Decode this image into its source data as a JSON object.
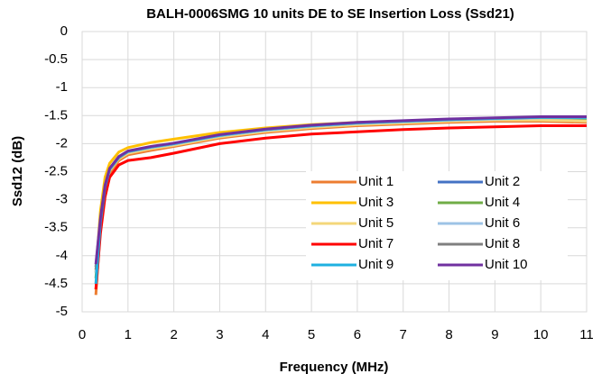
{
  "chart_data": {
    "type": "line",
    "title": "BALH-0006SMG 10 units DE to SE Insertion Loss (Ssd21)",
    "x_label": "Frequency  (MHz)",
    "y_label": "Ssd12 (dB)",
    "x": [
      0.3,
      0.4,
      0.5,
      0.6,
      0.8,
      1,
      1.5,
      2,
      3,
      4,
      5,
      6,
      7,
      8,
      9,
      10,
      11
    ],
    "series": [
      {
        "name": "Unit 1",
        "color": "#ED7D31",
        "values": [
          -4.7,
          -3.5,
          -2.85,
          -2.52,
          -2.3,
          -2.2,
          -2.12,
          -2.05,
          -1.9,
          -1.8,
          -1.73,
          -1.68,
          -1.65,
          -1.62,
          -1.6,
          -1.6,
          -1.62
        ]
      },
      {
        "name": "Unit 2",
        "color": "#4472C4",
        "values": [
          -4.2,
          -3.35,
          -2.75,
          -2.45,
          -2.25,
          -2.15,
          -2.07,
          -2.0,
          -1.85,
          -1.75,
          -1.68,
          -1.63,
          -1.6,
          -1.57,
          -1.55,
          -1.53,
          -1.53
        ]
      },
      {
        "name": "Unit 3",
        "color": "#FFC000",
        "values": [
          -4.3,
          -3.2,
          -2.6,
          -2.35,
          -2.15,
          -2.07,
          -1.98,
          -1.92,
          -1.8,
          -1.72,
          -1.66,
          -1.62,
          -1.6,
          -1.58,
          -1.56,
          -1.55,
          -1.55
        ]
      },
      {
        "name": "Unit 4",
        "color": "#70AD47",
        "values": [
          -4.4,
          -3.4,
          -2.78,
          -2.47,
          -2.26,
          -2.16,
          -2.08,
          -2.02,
          -1.87,
          -1.77,
          -1.7,
          -1.65,
          -1.62,
          -1.59,
          -1.57,
          -1.56,
          -1.56
        ]
      },
      {
        "name": "Unit 5",
        "color": "#F4D77A",
        "values": [
          -4.6,
          -3.45,
          -2.8,
          -2.48,
          -2.27,
          -2.17,
          -2.09,
          -2.03,
          -1.88,
          -1.78,
          -1.71,
          -1.66,
          -1.63,
          -1.6,
          -1.58,
          -1.58,
          -1.6
        ]
      },
      {
        "name": "Unit 6",
        "color": "#9DC3E6",
        "values": [
          -4.3,
          -3.38,
          -2.76,
          -2.46,
          -2.25,
          -2.15,
          -2.07,
          -2.01,
          -1.86,
          -1.76,
          -1.69,
          -1.64,
          -1.61,
          -1.58,
          -1.56,
          -1.54,
          -1.54
        ]
      },
      {
        "name": "Unit 7",
        "color": "#FF0000",
        "values": [
          -4.6,
          -3.6,
          -2.95,
          -2.6,
          -2.38,
          -2.3,
          -2.25,
          -2.17,
          -2.0,
          -1.9,
          -1.83,
          -1.79,
          -1.75,
          -1.72,
          -1.7,
          -1.68,
          -1.68
        ]
      },
      {
        "name": "Unit 8",
        "color": "#7F7F7F",
        "values": [
          -4.25,
          -3.36,
          -2.76,
          -2.46,
          -2.25,
          -2.14,
          -2.06,
          -2.0,
          -1.85,
          -1.75,
          -1.68,
          -1.63,
          -1.6,
          -1.57,
          -1.55,
          -1.53,
          -1.53
        ]
      },
      {
        "name": "Unit 9",
        "color": "#1FB0E0",
        "values": [
          -4.5,
          -3.4,
          -2.77,
          -2.46,
          -2.24,
          -2.14,
          -2.06,
          -2.0,
          -1.85,
          -1.75,
          -1.68,
          -1.63,
          -1.6,
          -1.57,
          -1.55,
          -1.53,
          -1.53
        ]
      },
      {
        "name": "Unit 10",
        "color": "#7030A0",
        "values": [
          -4.15,
          -3.33,
          -2.74,
          -2.44,
          -2.23,
          -2.13,
          -2.05,
          -1.99,
          -1.84,
          -1.74,
          -1.67,
          -1.62,
          -1.59,
          -1.56,
          -1.54,
          -1.52,
          -1.52
        ]
      }
    ],
    "xlim": [
      0,
      11
    ],
    "xticks": [
      0,
      1,
      2,
      3,
      4,
      5,
      6,
      7,
      8,
      9,
      10,
      11
    ],
    "ylim": [
      -5,
      0
    ],
    "yticks": [
      0,
      -0.5,
      -1,
      -1.5,
      -2,
      -2.5,
      -3,
      -3.5,
      -4,
      -4.5,
      -5
    ],
    "grid": true
  }
}
